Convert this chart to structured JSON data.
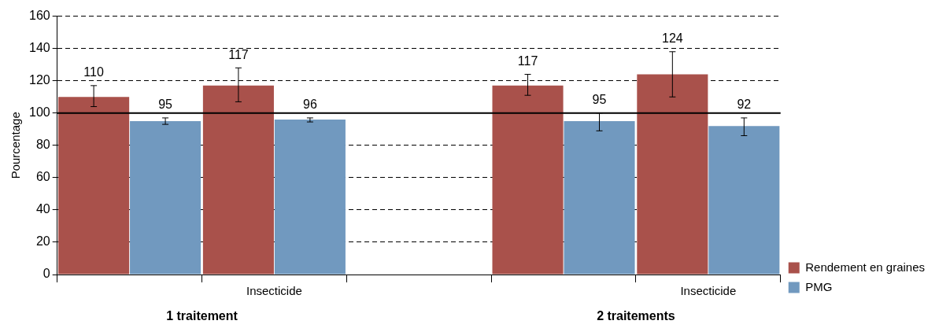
{
  "chart_data": {
    "type": "bar",
    "ylabel": "Pourcentage",
    "categories": [
      null,
      "Insecticide",
      null,
      null,
      "Insecticide"
    ],
    "series": [
      {
        "name": "Rendement en graines",
        "color": "#a9514b",
        "values": [
          110,
          117,
          null,
          117,
          124
        ],
        "errors": [
          [
            104,
            117
          ],
          [
            107,
            128
          ],
          null,
          [
            111,
            124
          ],
          [
            110,
            138
          ]
        ]
      },
      {
        "name": "PMG",
        "color": "#7199bf",
        "values": [
          95,
          96,
          null,
          95,
          92
        ],
        "errors": [
          [
            93,
            97
          ],
          [
            94.5,
            97
          ],
          null,
          [
            89,
            100
          ],
          [
            86,
            97
          ]
        ]
      }
    ],
    "data_labels": true,
    "ylim": [
      0,
      160
    ],
    "yticks": [
      0,
      20,
      40,
      60,
      80,
      100,
      120,
      140,
      160
    ],
    "grid": "y",
    "legend": "right",
    "ref_lines": [
      {
        "axis": "y",
        "value": 100,
        "color": "#000000",
        "line_style": "solid"
      }
    ],
    "annotations": [
      "1 traitement",
      "2 traitements"
    ]
  }
}
